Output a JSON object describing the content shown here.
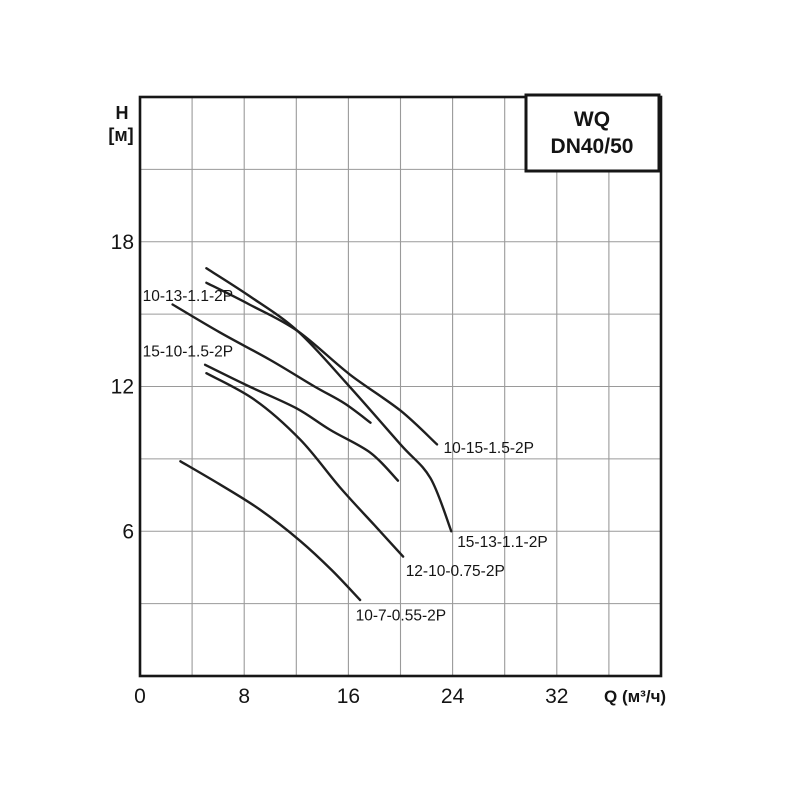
{
  "chart_data": {
    "type": "line",
    "title_box": {
      "line1": "WQ",
      "line2": "DN40/50"
    },
    "y_axis": {
      "label_line1": "H",
      "label_line2": "[м]",
      "min": 0,
      "max": 24,
      "grid_step": 3,
      "tick_labels": [
        18,
        12,
        6
      ]
    },
    "x_axis": {
      "label": "Q (м³/ч)",
      "min": 0,
      "max": 40,
      "grid_step": 4,
      "tick_labels": [
        0,
        8,
        16,
        24,
        32
      ]
    },
    "grid": true,
    "legend_position": "inline-labels",
    "colors": {
      "curve": "#1f1f1f",
      "grid": "#9a9a9a",
      "border": "#161616",
      "text": "#141414",
      "background": "#ffffff"
    },
    "series": [
      {
        "name": "15-13-1.1-2P",
        "points": [
          [
            5.1,
            16.9
          ],
          [
            8.4,
            15.75
          ],
          [
            12.1,
            14.3
          ],
          [
            16.0,
            12.05
          ],
          [
            20.0,
            9.6
          ],
          [
            22.3,
            8.2
          ],
          [
            23.9,
            6.0
          ]
        ],
        "label_anchor": {
          "q": 24.35,
          "h": 5.55,
          "align": "start"
        }
      },
      {
        "name": "10-15-1.5-2P",
        "points": [
          [
            5.1,
            16.3
          ],
          [
            8.4,
            15.4
          ],
          [
            12.1,
            14.3
          ],
          [
            16.1,
            12.5
          ],
          [
            20.0,
            11.0
          ],
          [
            22.8,
            9.6
          ]
        ],
        "label_anchor": {
          "q": 23.3,
          "h": 9.45,
          "align": "start"
        }
      },
      {
        "name": "10-13-1.1-2P",
        "points": [
          [
            2.5,
            15.4
          ],
          [
            6.1,
            14.25
          ],
          [
            10.0,
            13.1
          ],
          [
            13.4,
            12.0
          ],
          [
            15.7,
            11.3
          ],
          [
            17.7,
            10.5
          ]
        ],
        "label_anchor": {
          "q": 0.2,
          "h": 15.75,
          "align": "start"
        }
      },
      {
        "name": "15-10-1.5-2P",
        "points": [
          [
            5.0,
            12.9
          ],
          [
            8.4,
            12.0
          ],
          [
            12.0,
            11.1
          ],
          [
            14.6,
            10.2
          ],
          [
            17.7,
            9.25
          ],
          [
            19.8,
            8.1
          ]
        ],
        "label_anchor": {
          "q": 0.2,
          "h": 13.45,
          "align": "start"
        }
      },
      {
        "name": "12-10-0.75-2P",
        "points": [
          [
            5.1,
            12.55
          ],
          [
            8.8,
            11.45
          ],
          [
            12.3,
            9.8
          ],
          [
            15.3,
            7.85
          ],
          [
            18.0,
            6.25
          ],
          [
            20.2,
            4.95
          ]
        ],
        "label_anchor": {
          "q": 20.4,
          "h": 4.35,
          "align": "start"
        }
      },
      {
        "name": "10-7-0.55-2P",
        "points": [
          [
            3.1,
            8.9
          ],
          [
            6.1,
            7.95
          ],
          [
            9.2,
            6.9
          ],
          [
            12.3,
            5.6
          ],
          [
            14.7,
            4.4
          ],
          [
            16.9,
            3.15
          ]
        ],
        "label_anchor": {
          "q": 16.55,
          "h": 2.5,
          "align": "start"
        }
      }
    ]
  }
}
